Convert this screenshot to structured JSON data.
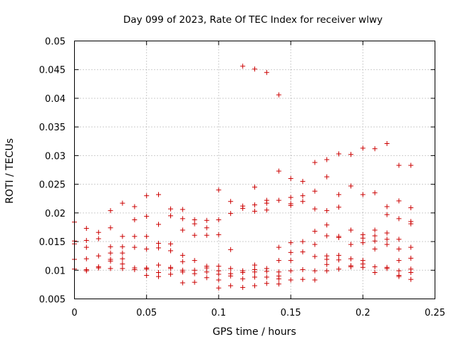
{
  "chart_data": {
    "type": "scatter",
    "title": "Day 099 of 2023, Rate Of TEC Index for receiver wlwy",
    "xlabel": "GPS time / hours",
    "ylabel": "ROTI / TECUs",
    "xlim": [
      0,
      0.25
    ],
    "ylim": [
      0.005,
      0.05
    ],
    "x_ticks": [
      "0",
      "0.05",
      "0.1",
      "0.15",
      "0.2",
      "0.25"
    ],
    "y_ticks": [
      "0.005",
      "0.01",
      "0.015",
      "0.02",
      "0.025",
      "0.03",
      "0.035",
      "0.04",
      "0.045",
      "0.05"
    ],
    "x_tick_values": [
      0,
      0.05,
      0.1,
      0.15,
      0.2,
      0.25
    ],
    "y_tick_values": [
      0.005,
      0.01,
      0.015,
      0.02,
      0.025,
      0.03,
      0.035,
      0.04,
      0.045,
      0.05
    ],
    "grid": true,
    "marker": "+",
    "color": "#cc0000",
    "series": [
      {
        "name": "ROTI",
        "points": [
          [
            0.0,
            0.0184
          ],
          [
            0.0,
            0.0151
          ],
          [
            0.0,
            0.0146
          ],
          [
            0.0,
            0.0119
          ],
          [
            0.0,
            0.0102
          ],
          [
            0.0083,
            0.0173
          ],
          [
            0.0083,
            0.0152
          ],
          [
            0.0083,
            0.014
          ],
          [
            0.0083,
            0.012
          ],
          [
            0.0083,
            0.0101
          ],
          [
            0.0083,
            0.0099
          ],
          [
            0.0167,
            0.0166
          ],
          [
            0.0167,
            0.0155
          ],
          [
            0.0167,
            0.0125
          ],
          [
            0.0167,
            0.0106
          ],
          [
            0.0167,
            0.0104
          ],
          [
            0.025,
            0.0204
          ],
          [
            0.025,
            0.0174
          ],
          [
            0.025,
            0.0141
          ],
          [
            0.025,
            0.013
          ],
          [
            0.025,
            0.0119
          ],
          [
            0.025,
            0.0116
          ],
          [
            0.025,
            0.0103
          ],
          [
            0.0333,
            0.0217
          ],
          [
            0.0333,
            0.0159
          ],
          [
            0.0333,
            0.0141
          ],
          [
            0.0333,
            0.013
          ],
          [
            0.0333,
            0.012
          ],
          [
            0.0333,
            0.0111
          ],
          [
            0.0333,
            0.0103
          ],
          [
            0.0417,
            0.0211
          ],
          [
            0.0417,
            0.0188
          ],
          [
            0.0417,
            0.0159
          ],
          [
            0.0417,
            0.014
          ],
          [
            0.0417,
            0.0104
          ],
          [
            0.0417,
            0.0101
          ],
          [
            0.05,
            0.023
          ],
          [
            0.05,
            0.0194
          ],
          [
            0.05,
            0.0159
          ],
          [
            0.05,
            0.0137
          ],
          [
            0.05,
            0.0104
          ],
          [
            0.05,
            0.0102
          ],
          [
            0.05,
            0.0091
          ],
          [
            0.0583,
            0.0232
          ],
          [
            0.0583,
            0.018
          ],
          [
            0.0583,
            0.0147
          ],
          [
            0.0583,
            0.0139
          ],
          [
            0.0583,
            0.0109
          ],
          [
            0.0583,
            0.0096
          ],
          [
            0.0583,
            0.0089
          ],
          [
            0.0667,
            0.0207
          ],
          [
            0.0667,
            0.0195
          ],
          [
            0.0667,
            0.0146
          ],
          [
            0.0667,
            0.0134
          ],
          [
            0.0667,
            0.0105
          ],
          [
            0.0667,
            0.0103
          ],
          [
            0.0667,
            0.0093
          ],
          [
            0.075,
            0.0206
          ],
          [
            0.075,
            0.019
          ],
          [
            0.075,
            0.017
          ],
          [
            0.075,
            0.0126
          ],
          [
            0.075,
            0.0115
          ],
          [
            0.075,
            0.01
          ],
          [
            0.075,
            0.0097
          ],
          [
            0.075,
            0.0078
          ],
          [
            0.0833,
            0.0188
          ],
          [
            0.0833,
            0.0181
          ],
          [
            0.0833,
            0.0161
          ],
          [
            0.0833,
            0.0117
          ],
          [
            0.0833,
            0.01
          ],
          [
            0.0833,
            0.0094
          ],
          [
            0.0833,
            0.0079
          ],
          [
            0.0917,
            0.0187
          ],
          [
            0.0917,
            0.0174
          ],
          [
            0.0917,
            0.0161
          ],
          [
            0.0917,
            0.0107
          ],
          [
            0.0917,
            0.0104
          ],
          [
            0.0917,
            0.0097
          ],
          [
            0.0917,
            0.0087
          ],
          [
            0.1,
            0.024
          ],
          [
            0.1,
            0.0188
          ],
          [
            0.1,
            0.0162
          ],
          [
            0.1,
            0.0107
          ],
          [
            0.1,
            0.0099
          ],
          [
            0.1,
            0.0093
          ],
          [
            0.1,
            0.0083
          ],
          [
            0.1,
            0.0069
          ],
          [
            0.1083,
            0.022
          ],
          [
            0.1083,
            0.0199
          ],
          [
            0.1083,
            0.0136
          ],
          [
            0.1083,
            0.0103
          ],
          [
            0.1083,
            0.0094
          ],
          [
            0.1083,
            0.009
          ],
          [
            0.1083,
            0.0073
          ],
          [
            0.1167,
            0.0456
          ],
          [
            0.1167,
            0.0212
          ],
          [
            0.1167,
            0.0208
          ],
          [
            0.1167,
            0.0099
          ],
          [
            0.1167,
            0.0096
          ],
          [
            0.1167,
            0.0085
          ],
          [
            0.1167,
            0.007
          ],
          [
            0.125,
            0.0451
          ],
          [
            0.125,
            0.0245
          ],
          [
            0.125,
            0.0214
          ],
          [
            0.125,
            0.0203
          ],
          [
            0.125,
            0.0109
          ],
          [
            0.125,
            0.0101
          ],
          [
            0.125,
            0.0097
          ],
          [
            0.125,
            0.0088
          ],
          [
            0.125,
            0.0073
          ],
          [
            0.1333,
            0.0445
          ],
          [
            0.1333,
            0.0222
          ],
          [
            0.1333,
            0.0217
          ],
          [
            0.1333,
            0.0205
          ],
          [
            0.1333,
            0.0103
          ],
          [
            0.1333,
            0.0098
          ],
          [
            0.1333,
            0.0088
          ],
          [
            0.1333,
            0.0077
          ],
          [
            0.1417,
            0.0406
          ],
          [
            0.1417,
            0.0273
          ],
          [
            0.1417,
            0.0222
          ],
          [
            0.1417,
            0.014
          ],
          [
            0.1417,
            0.0117
          ],
          [
            0.1417,
            0.0097
          ],
          [
            0.1417,
            0.009
          ],
          [
            0.1417,
            0.0085
          ],
          [
            0.1417,
            0.0076
          ],
          [
            0.15,
            0.026
          ],
          [
            0.15,
            0.0227
          ],
          [
            0.15,
            0.0216
          ],
          [
            0.15,
            0.0213
          ],
          [
            0.15,
            0.0148
          ],
          [
            0.15,
            0.0131
          ],
          [
            0.15,
            0.0117
          ],
          [
            0.15,
            0.0099
          ],
          [
            0.15,
            0.0083
          ],
          [
            0.1583,
            0.0255
          ],
          [
            0.1583,
            0.023
          ],
          [
            0.1583,
            0.022
          ],
          [
            0.1583,
            0.015
          ],
          [
            0.1583,
            0.0132
          ],
          [
            0.1583,
            0.0101
          ],
          [
            0.1583,
            0.0084
          ],
          [
            0.1667,
            0.0288
          ],
          [
            0.1667,
            0.0238
          ],
          [
            0.1667,
            0.0207
          ],
          [
            0.1667,
            0.0168
          ],
          [
            0.1667,
            0.0145
          ],
          [
            0.1667,
            0.0124
          ],
          [
            0.1667,
            0.0099
          ],
          [
            0.1667,
            0.0083
          ],
          [
            0.175,
            0.0293
          ],
          [
            0.175,
            0.0263
          ],
          [
            0.175,
            0.0204
          ],
          [
            0.175,
            0.0179
          ],
          [
            0.175,
            0.016
          ],
          [
            0.175,
            0.0125
          ],
          [
            0.175,
            0.0119
          ],
          [
            0.175,
            0.011
          ],
          [
            0.175,
            0.0099
          ],
          [
            0.1833,
            0.0303
          ],
          [
            0.1833,
            0.0232
          ],
          [
            0.1833,
            0.021
          ],
          [
            0.1833,
            0.0159
          ],
          [
            0.1833,
            0.0157
          ],
          [
            0.1833,
            0.0126
          ],
          [
            0.1833,
            0.0118
          ],
          [
            0.1833,
            0.0102
          ],
          [
            0.1917,
            0.0302
          ],
          [
            0.1917,
            0.0247
          ],
          [
            0.1917,
            0.017
          ],
          [
            0.1917,
            0.0145
          ],
          [
            0.1917,
            0.012
          ],
          [
            0.1917,
            0.0108
          ],
          [
            0.1917,
            0.0106
          ],
          [
            0.2,
            0.0313
          ],
          [
            0.2,
            0.0232
          ],
          [
            0.2,
            0.0162
          ],
          [
            0.2,
            0.0156
          ],
          [
            0.2,
            0.0148
          ],
          [
            0.2,
            0.0117
          ],
          [
            0.2,
            0.0111
          ],
          [
            0.2,
            0.0105
          ],
          [
            0.2083,
            0.0312
          ],
          [
            0.2083,
            0.0235
          ],
          [
            0.2083,
            0.017
          ],
          [
            0.2083,
            0.016
          ],
          [
            0.2083,
            0.0151
          ],
          [
            0.2083,
            0.0137
          ],
          [
            0.2083,
            0.0106
          ],
          [
            0.2083,
            0.0096
          ],
          [
            0.2167,
            0.0321
          ],
          [
            0.2167,
            0.0211
          ],
          [
            0.2167,
            0.0197
          ],
          [
            0.2167,
            0.0165
          ],
          [
            0.2167,
            0.0154
          ],
          [
            0.2167,
            0.0145
          ],
          [
            0.2167,
            0.0105
          ],
          [
            0.2167,
            0.0103
          ],
          [
            0.225,
            0.0283
          ],
          [
            0.225,
            0.0221
          ],
          [
            0.225,
            0.019
          ],
          [
            0.225,
            0.0154
          ],
          [
            0.225,
            0.0137
          ],
          [
            0.225,
            0.0117
          ],
          [
            0.225,
            0.0099
          ],
          [
            0.225,
            0.0091
          ],
          [
            0.225,
            0.0089
          ],
          [
            0.2333,
            0.0283
          ],
          [
            0.2333,
            0.0209
          ],
          [
            0.2333,
            0.0185
          ],
          [
            0.2333,
            0.0181
          ],
          [
            0.2333,
            0.014
          ],
          [
            0.2333,
            0.0121
          ],
          [
            0.2333,
            0.0102
          ],
          [
            0.2333,
            0.0096
          ],
          [
            0.2333,
            0.0084
          ]
        ]
      }
    ]
  }
}
